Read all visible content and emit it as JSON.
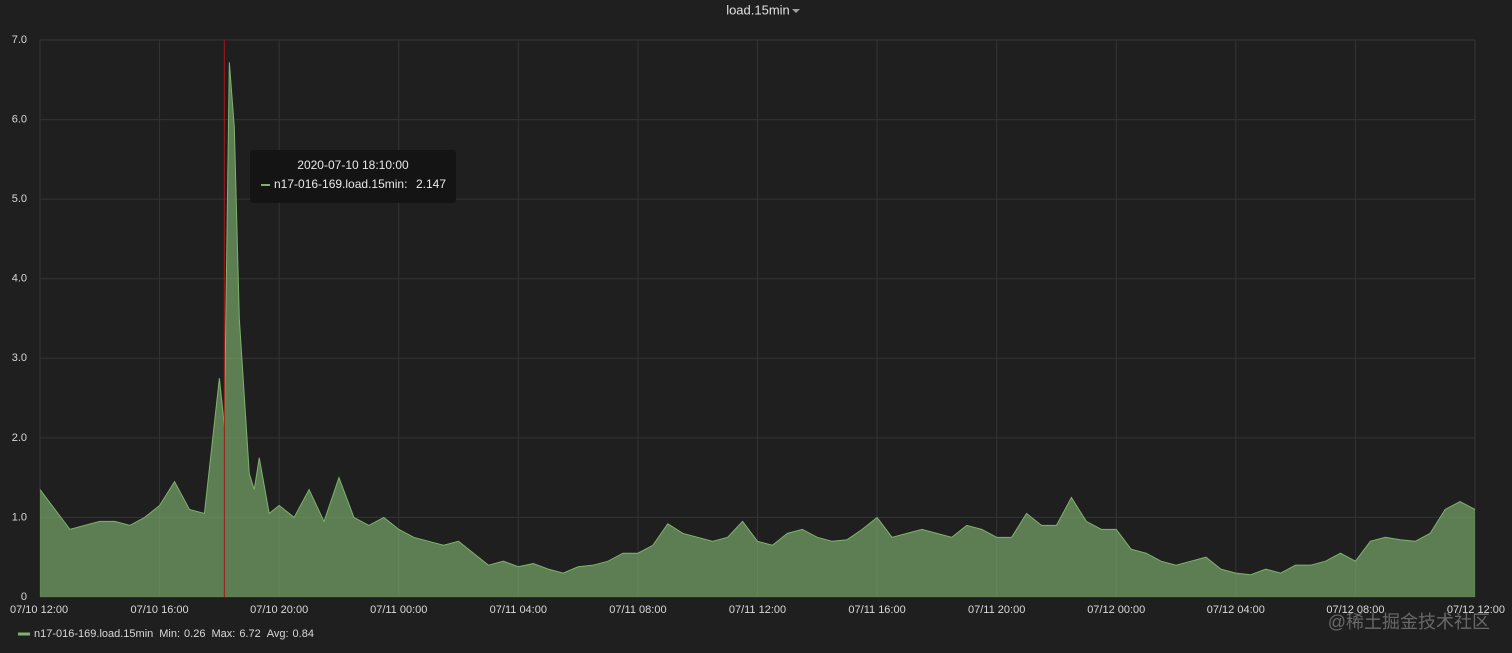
{
  "chart_data": {
    "type": "area",
    "title": "load.15min",
    "x": [
      "07/10 12:00",
      "07/10 12:30",
      "07/10 13:00",
      "07/10 13:30",
      "07/10 14:00",
      "07/10 14:30",
      "07/10 15:00",
      "07/10 15:30",
      "07/10 16:00",
      "07/10 16:30",
      "07/10 17:00",
      "07/10 17:30",
      "07/10 18:00",
      "07/10 18:10",
      "07/10 18:20",
      "07/10 18:30",
      "07/10 18:40",
      "07/10 19:00",
      "07/10 19:10",
      "07/10 19:20",
      "07/10 19:40",
      "07/10 20:00",
      "07/10 20:30",
      "07/10 21:00",
      "07/10 21:30",
      "07/10 22:00",
      "07/10 22:30",
      "07/10 23:00",
      "07/10 23:30",
      "07/11 00:00",
      "07/11 00:30",
      "07/11 01:00",
      "07/11 01:30",
      "07/11 02:00",
      "07/11 02:30",
      "07/11 03:00",
      "07/11 03:30",
      "07/11 04:00",
      "07/11 04:30",
      "07/11 05:00",
      "07/11 05:30",
      "07/11 06:00",
      "07/11 06:30",
      "07/11 07:00",
      "07/11 07:30",
      "07/11 08:00",
      "07/11 08:30",
      "07/11 09:00",
      "07/11 09:30",
      "07/11 10:00",
      "07/11 10:30",
      "07/11 11:00",
      "07/11 11:30",
      "07/11 12:00",
      "07/11 12:30",
      "07/11 13:00",
      "07/11 13:30",
      "07/11 14:00",
      "07/11 14:30",
      "07/11 15:00",
      "07/11 15:30",
      "07/11 16:00",
      "07/11 16:30",
      "07/11 17:00",
      "07/11 17:30",
      "07/11 18:00",
      "07/11 18:30",
      "07/11 19:00",
      "07/11 19:30",
      "07/11 20:00",
      "07/11 20:30",
      "07/11 21:00",
      "07/11 21:30",
      "07/11 22:00",
      "07/11 22:30",
      "07/11 23:00",
      "07/11 23:30",
      "07/12 00:00",
      "07/12 00:30",
      "07/12 01:00",
      "07/12 01:30",
      "07/12 02:00",
      "07/12 02:30",
      "07/12 03:00",
      "07/12 03:30",
      "07/12 04:00",
      "07/12 04:30",
      "07/12 05:00",
      "07/12 05:30",
      "07/12 06:00",
      "07/12 06:30",
      "07/12 07:00",
      "07/12 07:30",
      "07/12 08:00",
      "07/12 08:30",
      "07/12 09:00",
      "07/12 09:30",
      "07/12 10:00",
      "07/12 10:30",
      "07/12 11:00",
      "07/12 11:30",
      "07/12 12:00"
    ],
    "series": [
      {
        "name": "n17-016-169.load.15min",
        "color": "#7eb26d",
        "values": [
          1.35,
          1.1,
          0.85,
          0.9,
          0.95,
          0.95,
          0.9,
          1.0,
          1.15,
          1.45,
          1.1,
          1.05,
          2.75,
          2.15,
          6.72,
          5.9,
          3.5,
          1.55,
          1.35,
          1.75,
          1.05,
          1.15,
          1.0,
          1.35,
          0.95,
          1.5,
          1.0,
          0.9,
          1.0,
          0.85,
          0.75,
          0.7,
          0.65,
          0.7,
          0.55,
          0.4,
          0.45,
          0.38,
          0.42,
          0.35,
          0.3,
          0.38,
          0.4,
          0.45,
          0.55,
          0.55,
          0.65,
          0.92,
          0.8,
          0.75,
          0.7,
          0.75,
          0.95,
          0.7,
          0.65,
          0.8,
          0.85,
          0.75,
          0.7,
          0.72,
          0.85,
          1.0,
          0.75,
          0.8,
          0.85,
          0.8,
          0.75,
          0.9,
          0.85,
          0.75,
          0.75,
          1.05,
          0.9,
          0.9,
          1.25,
          0.95,
          0.85,
          0.85,
          0.6,
          0.55,
          0.45,
          0.4,
          0.45,
          0.5,
          0.35,
          0.3,
          0.28,
          0.35,
          0.3,
          0.4,
          0.4,
          0.45,
          0.55,
          0.45,
          0.7,
          0.75,
          0.72,
          0.7,
          0.8,
          1.1,
          1.2,
          1.1
        ]
      }
    ],
    "xlim": [
      "07/10 12:00",
      "07/12 12:00"
    ],
    "xticks": [
      "07/10 12:00",
      "07/10 16:00",
      "07/10 20:00",
      "07/11 00:00",
      "07/11 04:00",
      "07/11 08:00",
      "07/11 12:00",
      "07/11 16:00",
      "07/11 20:00",
      "07/12 00:00",
      "07/12 04:00",
      "07/12 08:00",
      "07/12 12:00"
    ],
    "ylim": [
      0,
      7
    ],
    "yticks": [
      0,
      {
        "value": 1,
        "label": "1.0"
      },
      {
        "value": 2,
        "label": "2.0"
      },
      {
        "value": 3,
        "label": "3.0"
      },
      {
        "value": 4,
        "label": "4.0"
      },
      {
        "value": 5,
        "label": "5.0"
      },
      {
        "value": 6,
        "label": "6.0"
      },
      {
        "value": 7,
        "label": "7.0"
      }
    ],
    "grid": true,
    "legend_stats": [
      {
        "label": "Min:",
        "value": 0.26
      },
      {
        "label": "Max:",
        "value": 6.72
      },
      {
        "label": "Avg:",
        "value": 0.84
      }
    ],
    "tooltip": {
      "time": "2020-07-10 18:10:00",
      "series": "n17-016-169.load.15min:",
      "value": 2.147
    },
    "watermark": "@稀土掘金技术社区"
  }
}
